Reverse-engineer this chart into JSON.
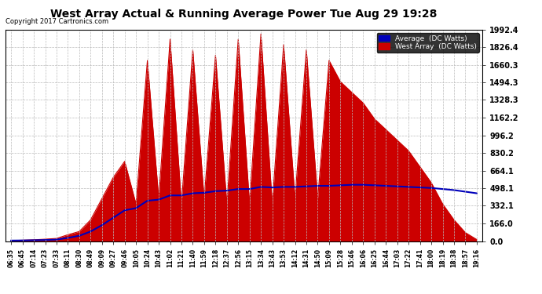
{
  "title": "West Array Actual & Running Average Power Tue Aug 29 19:28",
  "copyright": "Copyright 2017 Cartronics.com",
  "legend_labels": [
    "Average  (DC Watts)",
    "West Array  (DC Watts)"
  ],
  "legend_colors": [
    "#0000bb",
    "#cc0000"
  ],
  "y_ticks": [
    0.0,
    166.0,
    332.1,
    498.1,
    664.1,
    830.2,
    996.2,
    1162.2,
    1328.3,
    1494.3,
    1660.3,
    1826.4,
    1992.4
  ],
  "y_max": 1992.4,
  "background_color": "#ffffff",
  "plot_bg_color": "#ffffff",
  "grid_color": "#bbbbbb",
  "bar_color": "#cc0000",
  "line_color": "#0000bb",
  "x_labels": [
    "06:35",
    "06:45",
    "07:14",
    "07:23",
    "07:33",
    "08:11",
    "08:30",
    "08:49",
    "09:09",
    "09:27",
    "09:46",
    "10:05",
    "10:24",
    "10:43",
    "11:02",
    "11:21",
    "11:40",
    "11:59",
    "12:18",
    "12:37",
    "12:56",
    "13:15",
    "13:34",
    "13:43",
    "13:53",
    "14:12",
    "14:31",
    "14:50",
    "15:09",
    "15:28",
    "15:46",
    "16:06",
    "16:25",
    "16:44",
    "17:03",
    "17:22",
    "17:41",
    "18:00",
    "18:19",
    "18:38",
    "18:57",
    "19:16"
  ],
  "west_array": [
    5,
    8,
    12,
    18,
    25,
    60,
    90,
    200,
    400,
    600,
    750,
    350,
    1700,
    400,
    1900,
    350,
    1800,
    400,
    1750,
    350,
    1900,
    350,
    1950,
    350,
    1850,
    400,
    1800,
    400,
    1700,
    1500,
    1400,
    1300,
    1150,
    1050,
    950,
    850,
    700,
    550,
    350,
    200,
    80,
    15
  ],
  "avg_power": [
    5,
    6,
    8,
    10,
    14,
    30,
    50,
    90,
    150,
    220,
    290,
    310,
    380,
    390,
    430,
    430,
    450,
    455,
    470,
    475,
    490,
    490,
    510,
    505,
    510,
    510,
    515,
    520,
    520,
    525,
    530,
    530,
    525,
    520,
    515,
    510,
    505,
    500,
    490,
    480,
    465,
    450
  ]
}
